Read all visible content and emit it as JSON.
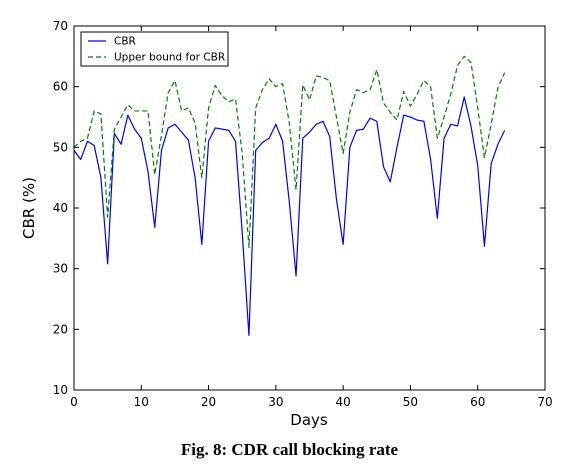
{
  "chart_data": {
    "type": "line",
    "xlabel": "Days",
    "ylabel": "CBR (%)",
    "xlim": [
      0,
      70
    ],
    "ylim": [
      10,
      70
    ],
    "xticks": [
      "0",
      "10",
      "20",
      "30",
      "40",
      "50",
      "60",
      "70"
    ],
    "yticks": [
      "10",
      "20",
      "30",
      "40",
      "50",
      "60",
      "70"
    ],
    "grid": false,
    "legend_position": "top-left",
    "x": [
      0,
      1,
      2,
      3,
      4,
      5,
      6,
      7,
      8,
      9,
      10,
      11,
      12,
      13,
      14,
      15,
      16,
      17,
      18,
      19,
      20,
      21,
      22,
      23,
      24,
      25,
      26,
      27,
      28,
      29,
      30,
      31,
      32,
      33,
      34,
      35,
      36,
      37,
      38,
      39,
      40,
      41,
      42,
      43,
      44,
      45,
      46,
      47,
      48,
      49,
      50,
      51,
      52,
      53,
      54,
      55,
      56,
      57,
      58,
      59,
      60,
      61,
      62,
      63,
      64
    ],
    "series": [
      {
        "name": "CBR",
        "color": "#0000ff",
        "style": "solid",
        "values": [
          49.5,
          48.0,
          51.0,
          50.3,
          45.0,
          30.8,
          52.3,
          50.5,
          55.3,
          53.0,
          51.5,
          46.0,
          36.8,
          49.5,
          53.2,
          53.8,
          52.5,
          51.2,
          45.0,
          34.0,
          51.0,
          53.2,
          53.0,
          52.8,
          51.0,
          36.0,
          19.0,
          49.5,
          50.8,
          51.5,
          53.8,
          51.0,
          41.0,
          28.8,
          51.5,
          52.5,
          53.8,
          54.3,
          51.8,
          41.5,
          34.0,
          50.0,
          52.8,
          53.0,
          54.8,
          54.3,
          46.8,
          44.3,
          50.0,
          55.3,
          55.0,
          54.5,
          54.3,
          48.0,
          38.3,
          51.5,
          53.8,
          53.5,
          58.3,
          53.5,
          47.0,
          33.7,
          47.3,
          50.5,
          52.8
        ]
      },
      {
        "name": "Upper bound for CBR",
        "color": "#008000",
        "style": "dashed",
        "values": [
          50.0,
          51.0,
          51.5,
          56.0,
          55.5,
          38.5,
          53.0,
          55.0,
          57.0,
          56.0,
          56.0,
          56.0,
          45.5,
          52.0,
          59.0,
          61.0,
          56.0,
          56.5,
          54.0,
          45.0,
          56.5,
          60.2,
          58.5,
          57.5,
          58.0,
          49.0,
          33.5,
          56.5,
          59.5,
          61.3,
          60.0,
          60.5,
          54.0,
          43.0,
          60.3,
          57.8,
          61.8,
          61.5,
          61.0,
          55.0,
          49.0,
          55.8,
          59.5,
          59.0,
          59.5,
          62.8,
          57.3,
          55.8,
          54.5,
          59.2,
          56.8,
          58.8,
          61.0,
          60.0,
          51.5,
          55.0,
          58.8,
          63.5,
          65.0,
          64.0,
          56.5,
          48.3,
          53.8,
          59.8,
          62.3
        ]
      }
    ]
  },
  "caption": "Fig. 8: CDR call blocking rate"
}
